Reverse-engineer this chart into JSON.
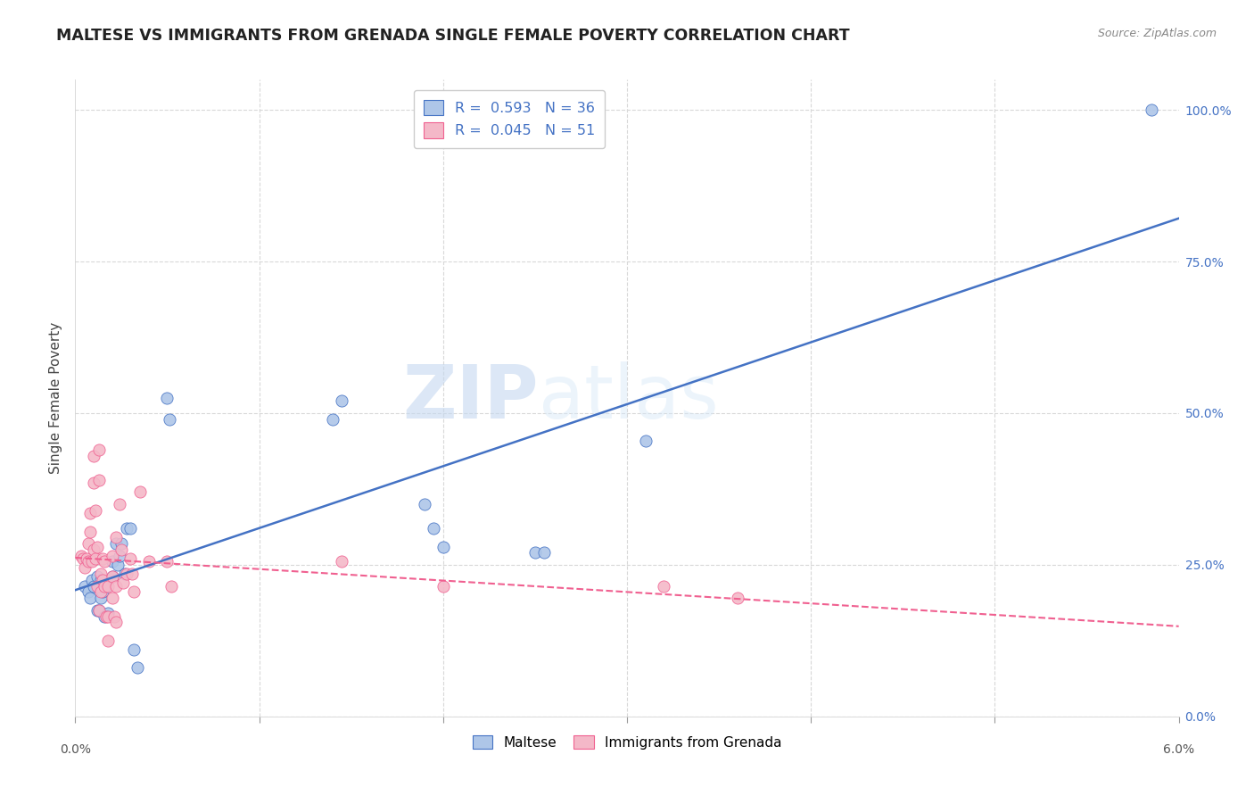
{
  "title": "MALTESE VS IMMIGRANTS FROM GRENADA SINGLE FEMALE POVERTY CORRELATION CHART",
  "source": "Source: ZipAtlas.com",
  "ylabel": "Single Female Poverty",
  "right_yticks": [
    "0.0%",
    "25.0%",
    "50.0%",
    "75.0%",
    "100.0%"
  ],
  "right_ytick_vals": [
    0.0,
    0.25,
    0.5,
    0.75,
    1.0
  ],
  "legend_maltese": "Maltese",
  "legend_grenada": "Immigrants from Grenada",
  "r_maltese": 0.593,
  "n_maltese": 36,
  "r_grenada": 0.045,
  "n_grenada": 51,
  "color_maltese": "#aec6e8",
  "color_grenada": "#f4b8c8",
  "line_maltese": "#4472c4",
  "line_grenada": "#f06090",
  "watermark_zip": "ZIP",
  "watermark_atlas": "atlas",
  "maltese_scatter": [
    [
      0.05,
      0.215
    ],
    [
      0.07,
      0.205
    ],
    [
      0.08,
      0.195
    ],
    [
      0.09,
      0.225
    ],
    [
      0.1,
      0.215
    ],
    [
      0.12,
      0.175
    ],
    [
      0.12,
      0.23
    ],
    [
      0.13,
      0.175
    ],
    [
      0.14,
      0.195
    ],
    [
      0.14,
      0.225
    ],
    [
      0.15,
      0.205
    ],
    [
      0.16,
      0.165
    ],
    [
      0.17,
      0.215
    ],
    [
      0.18,
      0.17
    ],
    [
      0.2,
      0.255
    ],
    [
      0.2,
      0.23
    ],
    [
      0.22,
      0.285
    ],
    [
      0.23,
      0.25
    ],
    [
      0.24,
      0.265
    ],
    [
      0.25,
      0.285
    ],
    [
      0.27,
      0.235
    ],
    [
      0.28,
      0.31
    ],
    [
      0.3,
      0.31
    ],
    [
      0.32,
      0.11
    ],
    [
      0.34,
      0.08
    ],
    [
      0.5,
      0.525
    ],
    [
      0.51,
      0.49
    ],
    [
      1.4,
      0.49
    ],
    [
      1.45,
      0.52
    ],
    [
      1.9,
      0.35
    ],
    [
      1.95,
      0.31
    ],
    [
      2.0,
      0.28
    ],
    [
      2.5,
      0.27
    ],
    [
      2.55,
      0.27
    ],
    [
      3.1,
      0.455
    ],
    [
      5.85,
      1.0
    ]
  ],
  "grenada_scatter": [
    [
      0.03,
      0.265
    ],
    [
      0.04,
      0.26
    ],
    [
      0.05,
      0.245
    ],
    [
      0.06,
      0.26
    ],
    [
      0.07,
      0.285
    ],
    [
      0.07,
      0.255
    ],
    [
      0.08,
      0.305
    ],
    [
      0.08,
      0.335
    ],
    [
      0.09,
      0.255
    ],
    [
      0.1,
      0.275
    ],
    [
      0.1,
      0.43
    ],
    [
      0.1,
      0.385
    ],
    [
      0.11,
      0.34
    ],
    [
      0.11,
      0.26
    ],
    [
      0.12,
      0.28
    ],
    [
      0.12,
      0.215
    ],
    [
      0.13,
      0.44
    ],
    [
      0.13,
      0.39
    ],
    [
      0.13,
      0.175
    ],
    [
      0.14,
      0.235
    ],
    [
      0.14,
      0.205
    ],
    [
      0.15,
      0.26
    ],
    [
      0.15,
      0.225
    ],
    [
      0.16,
      0.255
    ],
    [
      0.16,
      0.215
    ],
    [
      0.17,
      0.165
    ],
    [
      0.18,
      0.215
    ],
    [
      0.18,
      0.165
    ],
    [
      0.18,
      0.125
    ],
    [
      0.2,
      0.265
    ],
    [
      0.2,
      0.23
    ],
    [
      0.2,
      0.195
    ],
    [
      0.21,
      0.165
    ],
    [
      0.22,
      0.295
    ],
    [
      0.22,
      0.215
    ],
    [
      0.22,
      0.155
    ],
    [
      0.24,
      0.35
    ],
    [
      0.25,
      0.275
    ],
    [
      0.26,
      0.22
    ],
    [
      0.28,
      0.235
    ],
    [
      0.3,
      0.26
    ],
    [
      0.31,
      0.235
    ],
    [
      0.32,
      0.205
    ],
    [
      0.35,
      0.37
    ],
    [
      0.4,
      0.255
    ],
    [
      0.5,
      0.255
    ],
    [
      0.52,
      0.215
    ],
    [
      1.45,
      0.255
    ],
    [
      2.0,
      0.215
    ],
    [
      3.2,
      0.215
    ],
    [
      3.6,
      0.195
    ]
  ],
  "xmin": 0.0,
  "xmax": 6.0,
  "ymin": 0.0,
  "ymax": 1.05,
  "grid_color": "#d8d8d8",
  "background_color": "#ffffff"
}
